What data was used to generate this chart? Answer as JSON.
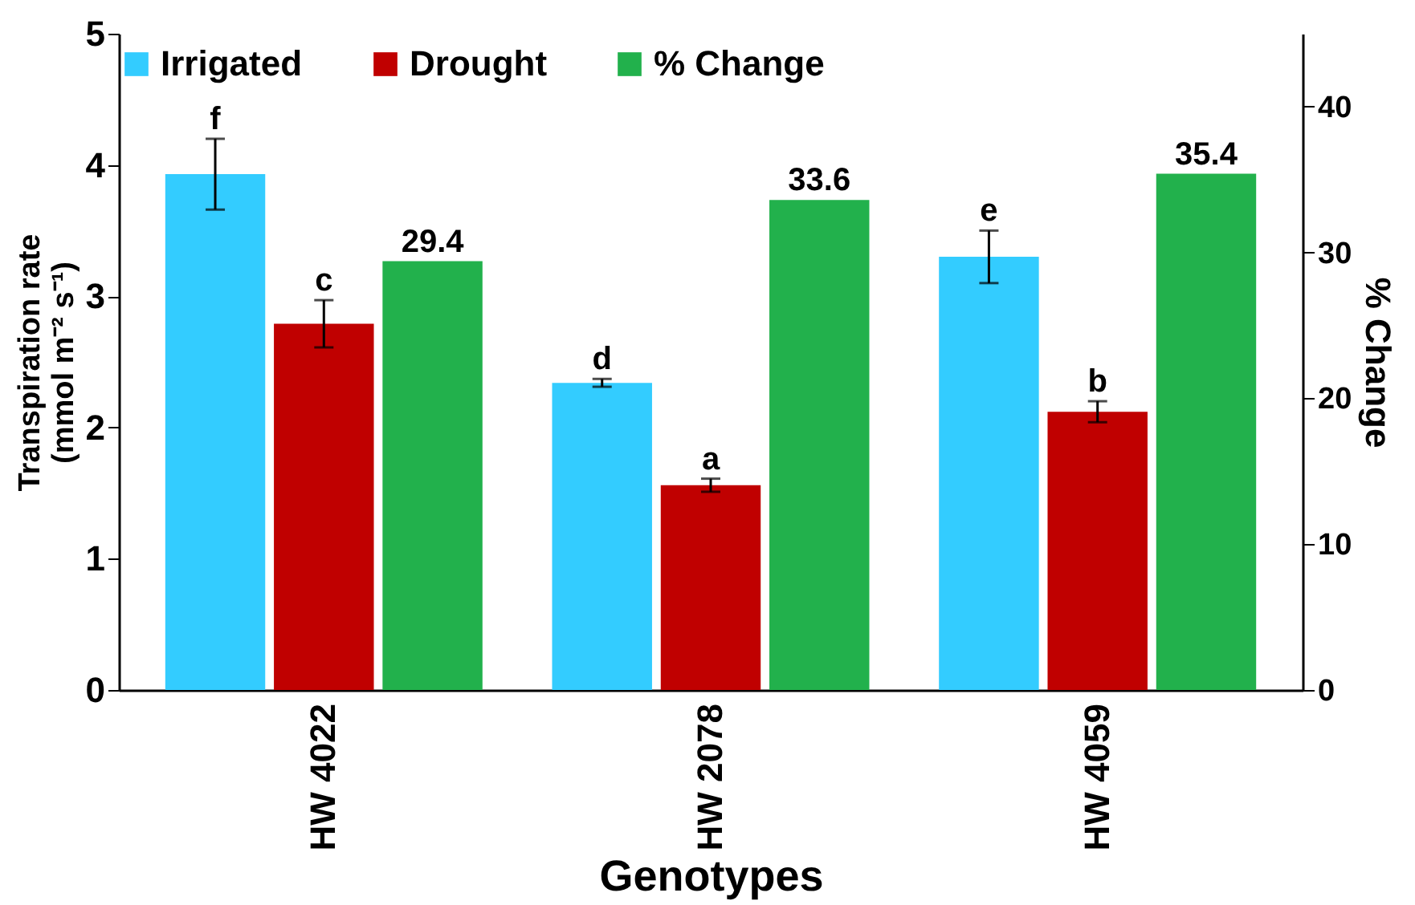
{
  "chart_data": {
    "type": "bar",
    "xlabel": "Genotypes",
    "ylabel": "Transpiration rate (mmol m⁻² s⁻¹)",
    "y2label": "% Change",
    "categories": [
      "HW 4022",
      "HW 2078",
      "HW 4059"
    ],
    "series": [
      {
        "name": "Irrigated",
        "color": "#33ccff",
        "values": [
          3.93,
          2.34,
          3.3
        ],
        "errors": [
          0.27,
          0.03,
          0.2
        ],
        "value_labels": [
          "f",
          "d",
          "e"
        ]
      },
      {
        "name": "Drought",
        "color": "#c00000",
        "values": [
          2.79,
          1.56,
          2.12
        ],
        "errors": [
          0.18,
          0.05,
          0.08
        ],
        "value_labels": [
          "c",
          "a",
          "b"
        ]
      },
      {
        "name": "% Change",
        "color": "#22b14c",
        "axis": "y2",
        "values": [
          29.4,
          33.6,
          35.4
        ],
        "value_labels": [
          "29.4",
          "33.6",
          "35.4"
        ]
      }
    ],
    "ylim": [
      0,
      5
    ],
    "yticks": [
      0,
      1,
      2,
      3,
      4,
      5
    ],
    "y2lim": [
      0,
      45
    ],
    "y2ticks": [
      0,
      10,
      20,
      30,
      40
    ],
    "legend": "top"
  }
}
